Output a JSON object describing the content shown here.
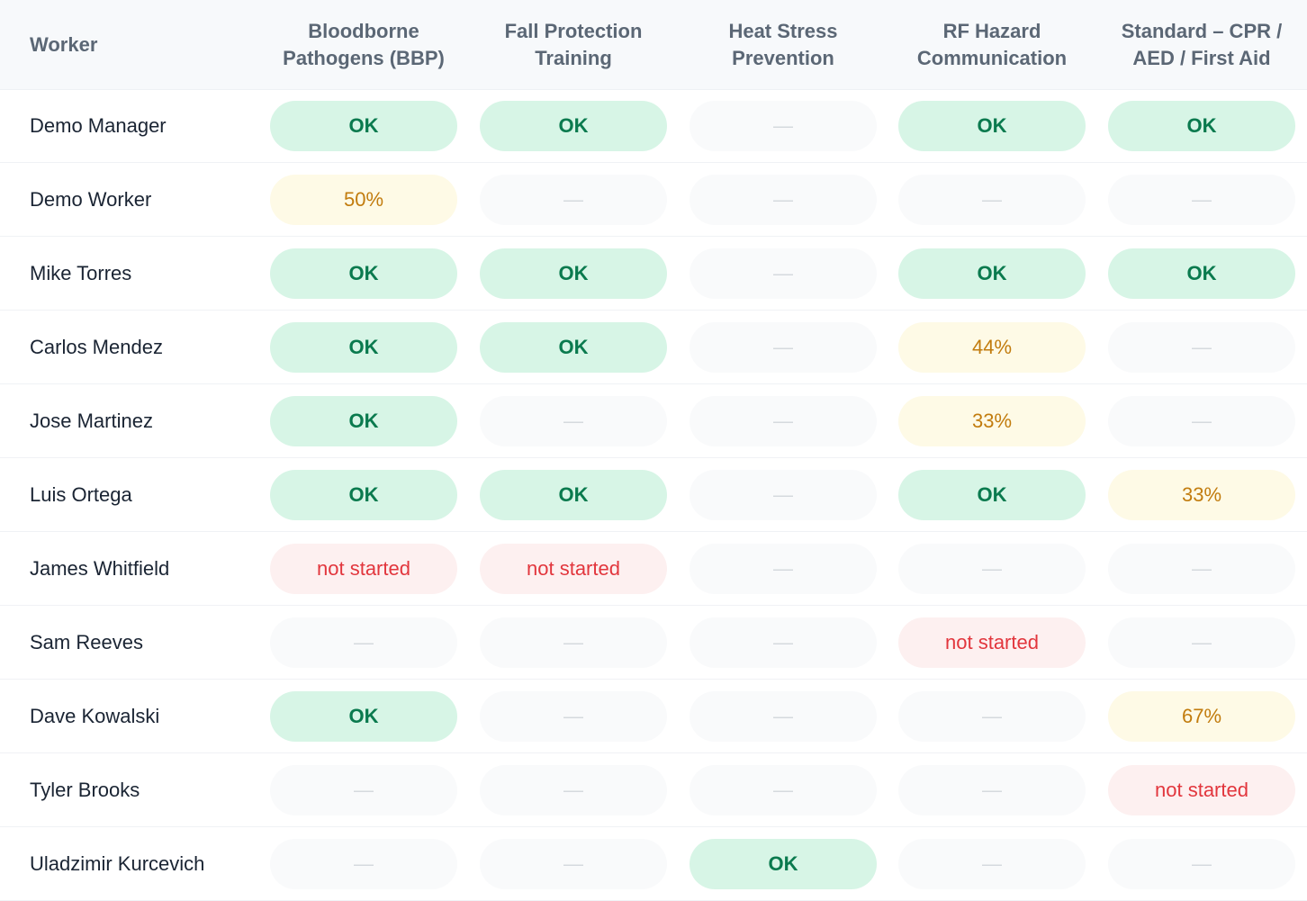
{
  "header": {
    "worker_label": "Worker",
    "courses": [
      {
        "line1": "Bloodborne",
        "line2": "Pathogens (BBP)"
      },
      {
        "line1": "Fall Protection",
        "line2": "Training"
      },
      {
        "line1": "Heat Stress",
        "line2": "Prevention"
      },
      {
        "line1": "RF Hazard",
        "line2": "Communication"
      },
      {
        "line1": "Standard – CPR /",
        "line2": "AED / First Aid"
      }
    ]
  },
  "status_colors": {
    "ok_bg": "#d7f5e6",
    "ok_text": "#0a7a4e",
    "partial_bg": "#fefae6",
    "partial_text": "#c27c0e",
    "not_started_bg": "#fdf0f0",
    "not_started_text": "#e2363d",
    "empty_bg": "#f9fafb",
    "empty_text": "#d5d9de"
  },
  "rows": [
    {
      "worker": "Demo Manager",
      "cells": [
        {
          "status": "ok",
          "text": "OK"
        },
        {
          "status": "ok",
          "text": "OK"
        },
        {
          "status": "empty",
          "text": "—"
        },
        {
          "status": "ok",
          "text": "OK"
        },
        {
          "status": "ok",
          "text": "OK"
        }
      ]
    },
    {
      "worker": "Demo Worker",
      "cells": [
        {
          "status": "partial",
          "text": "50%"
        },
        {
          "status": "empty",
          "text": "—"
        },
        {
          "status": "empty",
          "text": "—"
        },
        {
          "status": "empty",
          "text": "—"
        },
        {
          "status": "empty",
          "text": "—"
        }
      ]
    },
    {
      "worker": "Mike Torres",
      "cells": [
        {
          "status": "ok",
          "text": "OK"
        },
        {
          "status": "ok",
          "text": "OK"
        },
        {
          "status": "empty",
          "text": "—"
        },
        {
          "status": "ok",
          "text": "OK"
        },
        {
          "status": "ok",
          "text": "OK"
        }
      ]
    },
    {
      "worker": "Carlos Mendez",
      "cells": [
        {
          "status": "ok",
          "text": "OK"
        },
        {
          "status": "ok",
          "text": "OK"
        },
        {
          "status": "empty",
          "text": "—"
        },
        {
          "status": "partial",
          "text": "44%"
        },
        {
          "status": "empty",
          "text": "—"
        }
      ]
    },
    {
      "worker": "Jose Martinez",
      "cells": [
        {
          "status": "ok",
          "text": "OK"
        },
        {
          "status": "empty",
          "text": "—"
        },
        {
          "status": "empty",
          "text": "—"
        },
        {
          "status": "partial",
          "text": "33%"
        },
        {
          "status": "empty",
          "text": "—"
        }
      ]
    },
    {
      "worker": "Luis Ortega",
      "cells": [
        {
          "status": "ok",
          "text": "OK"
        },
        {
          "status": "ok",
          "text": "OK"
        },
        {
          "status": "empty",
          "text": "—"
        },
        {
          "status": "ok",
          "text": "OK"
        },
        {
          "status": "partial",
          "text": "33%"
        }
      ]
    },
    {
      "worker": "James Whitfield",
      "cells": [
        {
          "status": "not-started",
          "text": "not started"
        },
        {
          "status": "not-started",
          "text": "not started"
        },
        {
          "status": "empty",
          "text": "—"
        },
        {
          "status": "empty",
          "text": "—"
        },
        {
          "status": "empty",
          "text": "—"
        }
      ]
    },
    {
      "worker": "Sam Reeves",
      "cells": [
        {
          "status": "empty",
          "text": "—"
        },
        {
          "status": "empty",
          "text": "—"
        },
        {
          "status": "empty",
          "text": "—"
        },
        {
          "status": "not-started",
          "text": "not started"
        },
        {
          "status": "empty",
          "text": "—"
        }
      ]
    },
    {
      "worker": "Dave Kowalski",
      "cells": [
        {
          "status": "ok",
          "text": "OK"
        },
        {
          "status": "empty",
          "text": "—"
        },
        {
          "status": "empty",
          "text": "—"
        },
        {
          "status": "empty",
          "text": "—"
        },
        {
          "status": "partial",
          "text": "67%"
        }
      ]
    },
    {
      "worker": "Tyler Brooks",
      "cells": [
        {
          "status": "empty",
          "text": "—"
        },
        {
          "status": "empty",
          "text": "—"
        },
        {
          "status": "empty",
          "text": "—"
        },
        {
          "status": "empty",
          "text": "—"
        },
        {
          "status": "not-started",
          "text": "not started"
        }
      ]
    },
    {
      "worker": "Uladzimir Kurcevich",
      "cells": [
        {
          "status": "empty",
          "text": "—"
        },
        {
          "status": "empty",
          "text": "—"
        },
        {
          "status": "ok",
          "text": "OK"
        },
        {
          "status": "empty",
          "text": "—"
        },
        {
          "status": "empty",
          "text": "—"
        }
      ]
    }
  ]
}
